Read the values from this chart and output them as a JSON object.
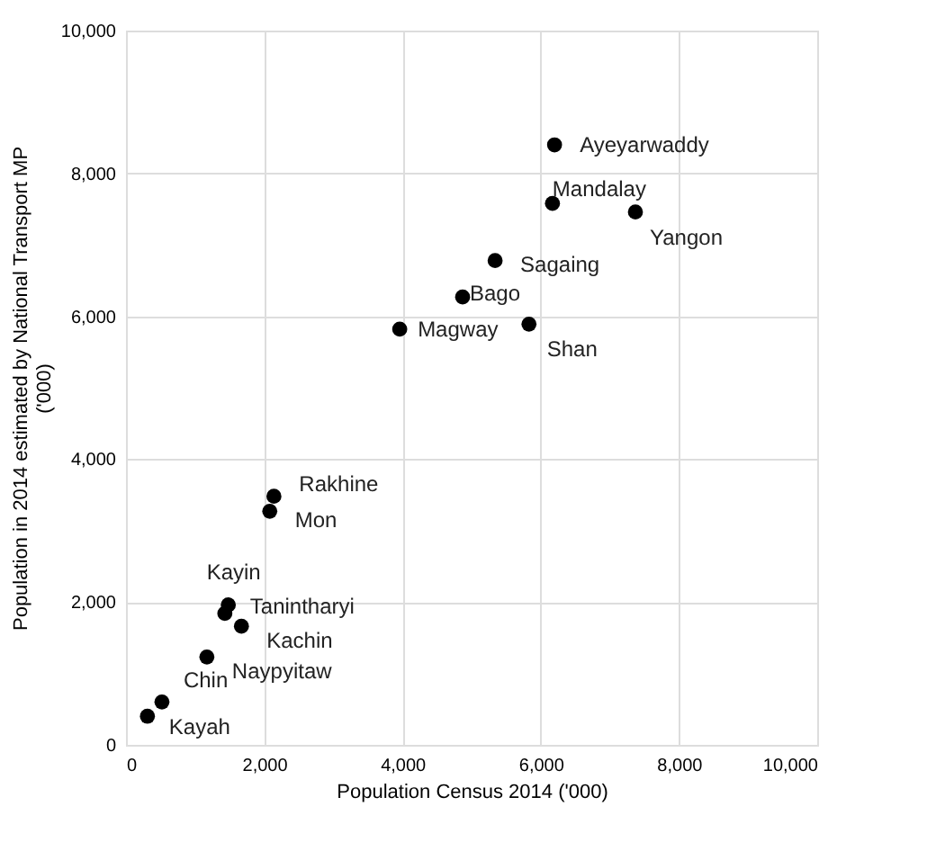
{
  "chart_data": {
    "type": "scatter",
    "xlabel": "Population Census 2014 ('000)",
    "ylabel": "Population in 2014 estimated by National Transport MP ('000)",
    "x": [
      6200,
      6170,
      7370,
      5340,
      4870,
      3960,
      5830,
      2140,
      2080,
      1480,
      1430,
      1670,
      1170,
      520,
      310
    ],
    "series": [
      {
        "color": "#000000",
        "values": [
          8400,
          7580,
          7460,
          6780,
          6270,
          5820,
          5890,
          3480,
          3270,
          1960,
          1840,
          1660,
          1230,
          600,
          400
        ],
        "value_labels": [
          "Ayeyarwaddy",
          "Mandalay",
          "Yangon",
          "Sagaing",
          "Bago",
          "Magway",
          "Shan",
          "Rakhine",
          "Mon",
          "Kayin",
          "Tanintharyi",
          "Kachin",
          "Naypyitaw",
          "Chin",
          "Kayah"
        ]
      }
    ],
    "xlim": [
      0,
      10000
    ],
    "ylim": [
      0,
      10000
    ],
    "xticks": [
      0,
      {
        "value": 2000,
        "label": "2,000"
      },
      {
        "value": 4000,
        "label": "4,000"
      },
      {
        "value": 6000,
        "label": "6,000"
      },
      {
        "value": 8000,
        "label": "8,000"
      },
      {
        "value": 10000,
        "label": "10,000"
      }
    ],
    "yticks": [
      0,
      {
        "value": 2000,
        "label": "2,000"
      },
      {
        "value": 4000,
        "label": "4,000"
      },
      {
        "value": 6000,
        "label": "6,000"
      },
      {
        "value": 8000,
        "label": "8,000"
      },
      {
        "value": 10000,
        "label": "10,000"
      }
    ],
    "grid": true,
    "marker": "circle"
  }
}
